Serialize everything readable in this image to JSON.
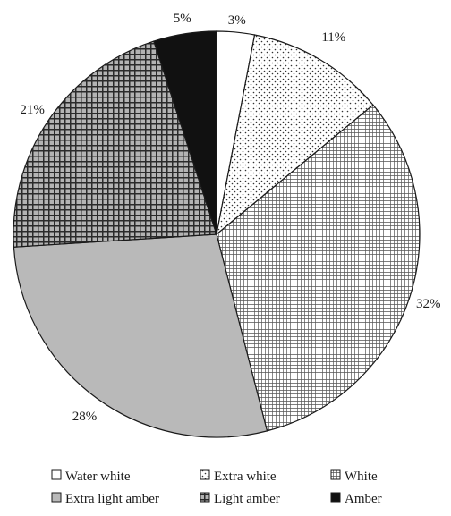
{
  "chart_data": {
    "type": "pie",
    "categories": [
      "Water white",
      "Extra white",
      "White",
      "Extra light amber",
      "Light amber",
      "Amber"
    ],
    "values": [
      3,
      11,
      32,
      28,
      21,
      5
    ],
    "value_labels": [
      "3%",
      "11%",
      "32%",
      "28%",
      "21%",
      "5%"
    ],
    "start_angle_deg": 0,
    "direction": "clockwise",
    "legend_position": "bottom",
    "fills": [
      "white",
      "dots",
      "grid-fine",
      "gray",
      "grid-coarse",
      "black"
    ],
    "colors": {
      "stroke": "#1a1a1a",
      "gray": "#b9b9b9",
      "black": "#111111",
      "pattern": "#333333"
    }
  }
}
